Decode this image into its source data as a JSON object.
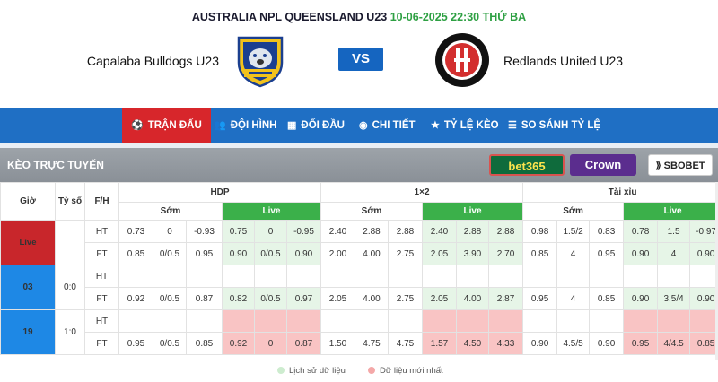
{
  "match": {
    "league": "AUSTRALIA NPL QUEENSLAND U23",
    "datetime": "10-06-2025 22:30 THỨ BA",
    "home": "Capalaba Bulldogs U23",
    "away": "Redlands United U23",
    "vs": "VS"
  },
  "nav": [
    {
      "label": "TRẬN ĐẤU",
      "icon": "soccer-ball-icon",
      "active": true
    },
    {
      "label": "ĐỘI HÌNH",
      "icon": "people-icon"
    },
    {
      "label": "ĐỐI ĐẦU",
      "icon": "versus-icon"
    },
    {
      "label": "CHI TIẾT",
      "icon": "chat-icon"
    },
    {
      "label": "TỶ LỆ KÈO",
      "icon": "star-icon"
    },
    {
      "label": "SO SÁNH TỶ LỆ",
      "icon": "list-icon"
    }
  ],
  "odds_section": {
    "title": "KÈO TRỰC TUYẾN",
    "bookmakers": [
      "bet365",
      "Crown",
      "SBOBET"
    ],
    "active_bookmaker": "bet365"
  },
  "table": {
    "col_gio": "Giờ",
    "col_tyso": "Tỷ số",
    "col_fh": "F/H",
    "groups": [
      "HDP",
      "1×2",
      "Tài xỉu"
    ],
    "sub_som": "Sớm",
    "sub_live": "Live",
    "rows": [
      {
        "time": "Live",
        "score": "",
        "ht": [
          "0.73",
          "0",
          "-0.93",
          "0.75",
          "0",
          "-0.95",
          "2.40",
          "2.88",
          "2.88",
          "2.40",
          "2.88",
          "2.88",
          "0.98",
          "1.5/2",
          "0.83",
          "0.78",
          "1.5",
          "-0.97"
        ],
        "ft": [
          "0.85",
          "0/0.5",
          "0.95",
          "0.90",
          "0/0.5",
          "0.90",
          "2.00",
          "4.00",
          "2.75",
          "2.05",
          "3.90",
          "2.70",
          "0.85",
          "4",
          "0.95",
          "0.90",
          "4",
          "0.90"
        ]
      },
      {
        "time": "03",
        "score": "0:0",
        "ht": [
          "",
          "",
          "",
          "",
          "",
          "",
          "",
          "",
          "",
          "",
          "",
          "",
          "",
          "",
          "",
          "",
          "",
          ""
        ],
        "ft": [
          "0.92",
          "0/0.5",
          "0.87",
          "0.82",
          "0/0.5",
          "0.97",
          "2.05",
          "4.00",
          "2.75",
          "2.05",
          "4.00",
          "2.87",
          "0.95",
          "4",
          "0.85",
          "0.90",
          "3.5/4",
          "0.90"
        ]
      },
      {
        "time": "19",
        "score": "1:0",
        "ht": [
          "",
          "",
          "",
          "",
          "",
          "",
          "",
          "",
          "",
          "",
          "",
          "",
          "",
          "",
          "",
          "",
          "",
          ""
        ],
        "ft": [
          "0.95",
          "0/0.5",
          "0.85",
          "0.92",
          "0",
          "0.87",
          "1.50",
          "4.75",
          "4.75",
          "1.57",
          "4.50",
          "4.33",
          "0.90",
          "4.5/5",
          "0.90",
          "0.95",
          "4/4.5",
          "0.85"
        ]
      }
    ]
  },
  "legend": {
    "history": "Lịch sử dữ liệu",
    "latest": "Dữ liệu mới nhất",
    "history_color": "#cdeccf",
    "latest_color": "#f4a8a8"
  }
}
